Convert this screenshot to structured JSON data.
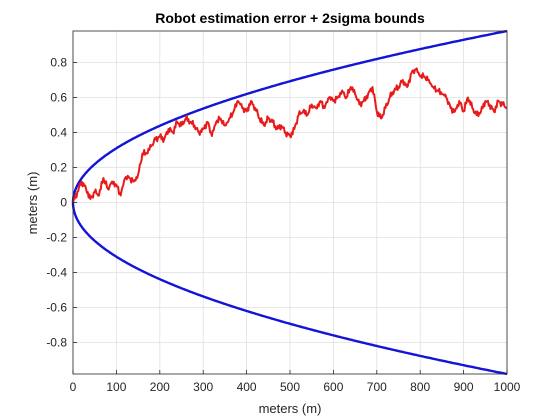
{
  "chart_data": {
    "type": "line",
    "title": "Robot estimation error + 2sigma bounds",
    "xlabel": "meters (m)",
    "ylabel": "meters (m)",
    "xlim": [
      0,
      1000
    ],
    "ylim": [
      -0.98,
      0.98
    ],
    "xticks": [
      0,
      100,
      200,
      300,
      400,
      500,
      600,
      700,
      800,
      900,
      1000
    ],
    "xtick_labels": [
      "0",
      "100",
      "200",
      "300",
      "400",
      "500",
      "600",
      "700",
      "800",
      "900",
      "1000"
    ],
    "yticks": [
      -0.8,
      -0.6,
      -0.4,
      -0.2,
      0,
      0.2,
      0.4,
      0.6,
      0.8
    ],
    "ytick_labels": [
      "-0.8",
      "-0.6",
      "-0.4",
      "-0.2",
      "0",
      "0.2",
      "0.4",
      "0.6",
      "0.8"
    ],
    "grid": true,
    "series": [
      {
        "color": "#e81a1a",
        "x": [
          0,
          10,
          20,
          30,
          40,
          50,
          60,
          70,
          80,
          90,
          100,
          110,
          120,
          130,
          140,
          150,
          160,
          170,
          180,
          190,
          200,
          210,
          220,
          230,
          240,
          250,
          260,
          270,
          280,
          290,
          300,
          310,
          320,
          330,
          340,
          350,
          360,
          370,
          380,
          390,
          400,
          410,
          420,
          430,
          440,
          450,
          460,
          470,
          480,
          490,
          500,
          510,
          520,
          530,
          540,
          550,
          560,
          570,
          580,
          590,
          600,
          610,
          620,
          630,
          640,
          650,
          660,
          670,
          680,
          690,
          700,
          710,
          720,
          730,
          740,
          750,
          760,
          770,
          780,
          790,
          800,
          810,
          820,
          830,
          840,
          850,
          860,
          870,
          880,
          890,
          900,
          910,
          920,
          930,
          940,
          950,
          960,
          970,
          980,
          990,
          1000
        ],
        "y": [
          0.0,
          0.06,
          0.12,
          0.08,
          0.02,
          0.06,
          0.04,
          0.14,
          0.08,
          0.12,
          0.1,
          0.04,
          0.14,
          0.14,
          0.12,
          0.16,
          0.28,
          0.28,
          0.32,
          0.36,
          0.38,
          0.36,
          0.42,
          0.4,
          0.46,
          0.44,
          0.48,
          0.46,
          0.44,
          0.4,
          0.42,
          0.46,
          0.38,
          0.46,
          0.48,
          0.44,
          0.48,
          0.52,
          0.58,
          0.54,
          0.52,
          0.58,
          0.54,
          0.48,
          0.44,
          0.48,
          0.46,
          0.42,
          0.44,
          0.4,
          0.38,
          0.42,
          0.5,
          0.52,
          0.5,
          0.56,
          0.54,
          0.58,
          0.54,
          0.6,
          0.58,
          0.6,
          0.64,
          0.6,
          0.66,
          0.62,
          0.56,
          0.58,
          0.62,
          0.66,
          0.52,
          0.48,
          0.54,
          0.6,
          0.64,
          0.66,
          0.7,
          0.66,
          0.74,
          0.76,
          0.72,
          0.72,
          0.7,
          0.66,
          0.64,
          0.62,
          0.6,
          0.54,
          0.52,
          0.58,
          0.52,
          0.6,
          0.54,
          0.5,
          0.52,
          0.58,
          0.56,
          0.52,
          0.58,
          0.56,
          0.54
        ]
      },
      {
        "color": "#1414d9",
        "function": "0.031*sqrt(x)",
        "x": [
          0,
          1,
          5,
          10,
          20,
          40,
          60,
          80,
          100,
          150,
          200,
          250,
          300,
          350,
          400,
          450,
          500,
          550,
          600,
          650,
          700,
          750,
          800,
          850,
          900,
          950,
          1000
        ],
        "y": [
          0.0,
          0.031,
          0.069,
          0.098,
          0.139,
          0.196,
          0.24,
          0.277,
          0.31,
          0.38,
          0.438,
          0.49,
          0.537,
          0.58,
          0.62,
          0.658,
          0.693,
          0.727,
          0.759,
          0.79,
          0.82,
          0.849,
          0.877,
          0.904,
          0.93,
          0.955,
          0.98
        ]
      },
      {
        "color": "#1414d9",
        "function": "-0.031*sqrt(x)",
        "x": [
          0,
          1,
          5,
          10,
          20,
          40,
          60,
          80,
          100,
          150,
          200,
          250,
          300,
          350,
          400,
          450,
          500,
          550,
          600,
          650,
          700,
          750,
          800,
          850,
          900,
          950,
          1000
        ],
        "y": [
          0.0,
          -0.031,
          -0.069,
          -0.098,
          -0.139,
          -0.196,
          -0.24,
          -0.277,
          -0.31,
          -0.38,
          -0.438,
          -0.49,
          -0.537,
          -0.58,
          -0.62,
          -0.658,
          -0.693,
          -0.727,
          -0.759,
          -0.79,
          -0.82,
          -0.849,
          -0.877,
          -0.904,
          -0.93,
          -0.955,
          -0.98
        ]
      }
    ]
  }
}
